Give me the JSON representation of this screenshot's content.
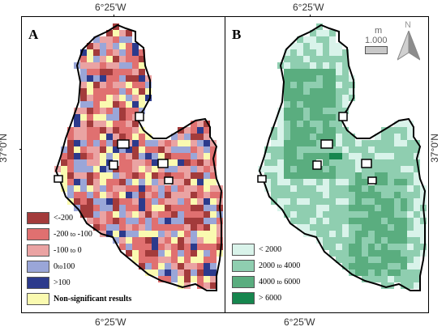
{
  "coords": {
    "top_left": "6°25'W",
    "top_right": "6°25'W",
    "bottom_left": "6°25'W",
    "bottom_right": "6°25'W",
    "left_lat": "37°0'N",
    "right_lat": "37°0'N"
  },
  "panels": {
    "a": {
      "label": "A",
      "legend": [
        {
          "text": "<-200",
          "color": "#a33b3b"
        },
        {
          "text": "-200",
          "mid": "to",
          "text2": "-100",
          "color": "#e07070"
        },
        {
          "text": "-100",
          "mid": "to",
          "text2": "0",
          "color": "#eaa3a3"
        },
        {
          "text": "0",
          "mid": "to",
          "text2": "100",
          "color": "#9aa6d8"
        },
        {
          "text": ">100",
          "color": "#2c3a8c"
        },
        {
          "text": "Non-significant results",
          "color": "#fafab0"
        }
      ]
    },
    "b": {
      "label": "B",
      "legend": [
        {
          "text": "< 2000",
          "color": "#d9f3ea"
        },
        {
          "text": "2000",
          "mid": "to",
          "text2": "4000",
          "color": "#8fceb0"
        },
        {
          "text": "4000",
          "mid": "to",
          "text2": "6000",
          "color": "#5aad7f"
        },
        {
          "text": "> 6000",
          "color": "#16864e"
        }
      ],
      "scale": {
        "unit": "m",
        "value": "1.000"
      },
      "north": "N"
    }
  }
}
